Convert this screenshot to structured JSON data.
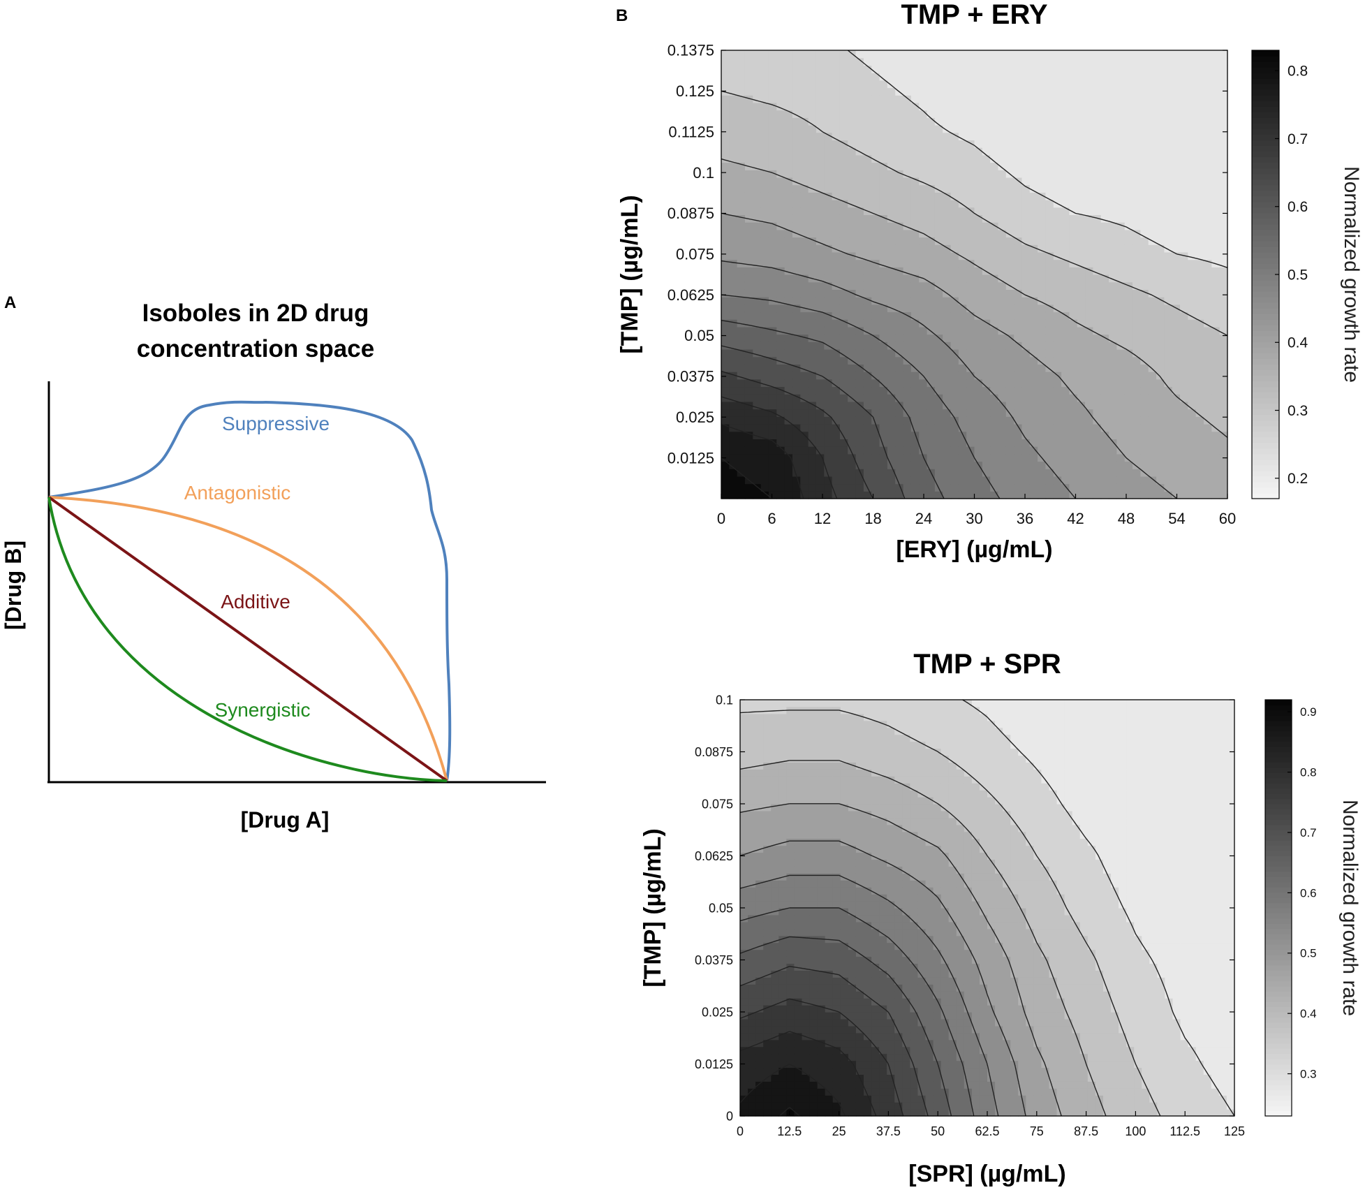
{
  "panel_a": {
    "letter": "A",
    "title_line1": "Isoboles in 2D drug",
    "title_line2": "concentration space",
    "xlabel": "[Drug A]",
    "ylabel": "[Drug B]",
    "colors": {
      "suppressive": "#4f81bd",
      "antagonistic": "#f2a05a",
      "additive": "#7b1416",
      "synergistic": "#1e8a1e"
    }
  },
  "panel_b": {
    "letter": "B"
  },
  "chart_data": [
    {
      "type": "line",
      "title": "Isoboles in 2D drug concentration space",
      "xlabel": "[Drug A]",
      "ylabel": "[Drug B]",
      "series": [
        {
          "name": "Suppressive",
          "x": [
            0,
            0.12,
            0.27,
            0.36,
            0.45,
            0.65,
            0.84,
            0.94,
            0.98,
            1.0
          ],
          "y": [
            1.0,
            1.06,
            1.17,
            1.3,
            1.34,
            1.33,
            1.2,
            0.9,
            0.6,
            0.0
          ]
        },
        {
          "name": "Antagonistic",
          "x": [
            0,
            0.3,
            0.55,
            0.75,
            0.9,
            0.97,
            1.0
          ],
          "y": [
            1.0,
            0.95,
            0.82,
            0.63,
            0.4,
            0.2,
            0.0
          ]
        },
        {
          "name": "Additive",
          "x": [
            0,
            1
          ],
          "y": [
            1,
            0
          ]
        },
        {
          "name": "Synergistic",
          "x": [
            0,
            0.05,
            0.15,
            0.3,
            0.5,
            0.7,
            0.9,
            1.0
          ],
          "y": [
            1.0,
            0.6,
            0.36,
            0.2,
            0.09,
            0.04,
            0.01,
            0.0
          ]
        }
      ]
    },
    {
      "type": "heatmap",
      "title": "TMP + ERY",
      "xlabel": "[ERY] (µg/mL)",
      "ylabel": "[TMP] (µg/mL)",
      "colorbar_label": "Normalized growth rate",
      "xlim": [
        0,
        60
      ],
      "ylim": [
        0,
        0.1375
      ],
      "x_ticks": [
        "0",
        "6",
        "12",
        "18",
        "24",
        "30",
        "36",
        "42",
        "48",
        "54",
        "60"
      ],
      "y_ticks": [
        "0.0125",
        "0.025",
        "0.0375",
        "0.05",
        "0.0625",
        "0.075",
        "0.0875",
        "0.1",
        "0.1125",
        "0.125",
        "0.1375"
      ],
      "colorbar_range": [
        0.17,
        0.83
      ],
      "colorbar_ticks": [
        "0.2",
        "0.3",
        "0.4",
        "0.5",
        "0.6",
        "0.7",
        "0.8"
      ],
      "x": [
        0,
        6,
        12,
        18,
        24,
        30,
        36,
        42,
        48,
        54,
        60
      ],
      "y": [
        0,
        0.0125,
        0.025,
        0.0375,
        0.05,
        0.0625,
        0.075,
        0.0875,
        0.1,
        0.1125,
        0.125,
        0.1375
      ],
      "z": [
        [
          0.82,
          0.8,
          0.72,
          0.65,
          0.57,
          0.52,
          0.48,
          0.45,
          0.42,
          0.4,
          0.38
        ],
        [
          0.8,
          0.78,
          0.7,
          0.62,
          0.55,
          0.5,
          0.46,
          0.43,
          0.4,
          0.38,
          0.36
        ],
        [
          0.74,
          0.71,
          0.66,
          0.6,
          0.53,
          0.48,
          0.44,
          0.41,
          0.38,
          0.36,
          0.34
        ],
        [
          0.66,
          0.63,
          0.6,
          0.55,
          0.5,
          0.45,
          0.42,
          0.39,
          0.37,
          0.34,
          0.32
        ],
        [
          0.58,
          0.56,
          0.54,
          0.5,
          0.46,
          0.42,
          0.39,
          0.36,
          0.34,
          0.32,
          0.3
        ],
        [
          0.5,
          0.49,
          0.47,
          0.44,
          0.42,
          0.38,
          0.35,
          0.33,
          0.31,
          0.29,
          0.27
        ],
        [
          0.44,
          0.43,
          0.41,
          0.39,
          0.37,
          0.34,
          0.31,
          0.29,
          0.27,
          0.25,
          0.24
        ],
        [
          0.4,
          0.39,
          0.37,
          0.35,
          0.33,
          0.3,
          0.27,
          0.25,
          0.24,
          0.22,
          0.21
        ],
        [
          0.36,
          0.35,
          0.33,
          0.31,
          0.29,
          0.27,
          0.24,
          0.22,
          0.21,
          0.2,
          0.19
        ],
        [
          0.33,
          0.32,
          0.3,
          0.28,
          0.26,
          0.24,
          0.21,
          0.2,
          0.19,
          0.18,
          0.18
        ],
        [
          0.3,
          0.29,
          0.28,
          0.26,
          0.24,
          0.21,
          0.19,
          0.18,
          0.18,
          0.17,
          0.17
        ],
        [
          0.28,
          0.27,
          0.26,
          0.24,
          0.22,
          0.19,
          0.18,
          0.17,
          0.17,
          0.17,
          0.17
        ]
      ],
      "contour_levels": [
        0.25,
        0.3,
        0.35,
        0.4,
        0.45,
        0.5,
        0.55,
        0.6,
        0.65,
        0.7,
        0.75,
        0.8
      ]
    },
    {
      "type": "heatmap",
      "title": "TMP + SPR",
      "xlabel": "[SPR] (µg/mL)",
      "ylabel": "[TMP] (µg/mL)",
      "colorbar_label": "Normalized growth rate",
      "xlim": [
        0,
        125
      ],
      "ylim": [
        0,
        0.1
      ],
      "x_ticks": [
        "0",
        "12.5",
        "25",
        "37.5",
        "50",
        "62.5",
        "75",
        "87.5",
        "100",
        "112.5",
        "125"
      ],
      "y_ticks": [
        "0",
        "0.0125",
        "0.025",
        "0.0375",
        "0.05",
        "0.0625",
        "0.075",
        "0.0875",
        "0.1"
      ],
      "colorbar_range": [
        0.23,
        0.92
      ],
      "colorbar_ticks": [
        "0.3",
        "0.4",
        "0.5",
        "0.6",
        "0.7",
        "0.8",
        "0.9"
      ],
      "x": [
        0,
        12.5,
        25,
        37.5,
        50,
        62.5,
        75,
        87.5,
        100,
        112.5,
        125
      ],
      "y": [
        0,
        0.0125,
        0.025,
        0.0375,
        0.05,
        0.0625,
        0.075,
        0.0875,
        0.1
      ],
      "z": [
        [
          0.86,
          0.91,
          0.86,
          0.78,
          0.68,
          0.57,
          0.48,
          0.42,
          0.37,
          0.33,
          0.3
        ],
        [
          0.82,
          0.85,
          0.82,
          0.75,
          0.65,
          0.55,
          0.46,
          0.4,
          0.35,
          0.31,
          0.28
        ],
        [
          0.74,
          0.77,
          0.75,
          0.7,
          0.61,
          0.51,
          0.43,
          0.38,
          0.33,
          0.29,
          0.27
        ],
        [
          0.66,
          0.69,
          0.68,
          0.63,
          0.56,
          0.48,
          0.41,
          0.36,
          0.31,
          0.28,
          0.25
        ],
        [
          0.58,
          0.6,
          0.6,
          0.56,
          0.51,
          0.44,
          0.38,
          0.33,
          0.29,
          0.26,
          0.24
        ],
        [
          0.5,
          0.52,
          0.52,
          0.49,
          0.46,
          0.4,
          0.35,
          0.31,
          0.27,
          0.25,
          0.24
        ],
        [
          0.44,
          0.45,
          0.45,
          0.43,
          0.4,
          0.36,
          0.32,
          0.28,
          0.26,
          0.24,
          0.23
        ],
        [
          0.38,
          0.39,
          0.39,
          0.37,
          0.35,
          0.32,
          0.29,
          0.26,
          0.24,
          0.23,
          0.23
        ],
        [
          0.34,
          0.34,
          0.34,
          0.33,
          0.31,
          0.29,
          0.26,
          0.24,
          0.23,
          0.23,
          0.23
        ]
      ],
      "contour_levels": [
        0.3,
        0.35,
        0.4,
        0.45,
        0.5,
        0.55,
        0.6,
        0.65,
        0.7,
        0.75,
        0.8,
        0.85,
        0.9
      ]
    }
  ]
}
